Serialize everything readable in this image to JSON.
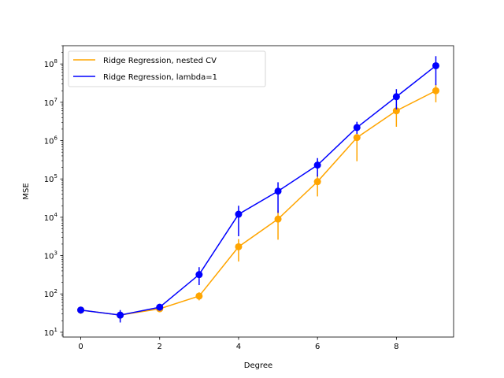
{
  "chart_data": {
    "type": "line",
    "xlabel": "Degree",
    "ylabel": "MSE",
    "xlim": [
      -0.45,
      9.45
    ],
    "ylim": [
      7.5,
      300000000
    ],
    "yscale": "log",
    "x_ticks": [
      0,
      2,
      4,
      6,
      8
    ],
    "x_tick_labels": [
      "0",
      "2",
      "4",
      "6",
      "8"
    ],
    "y_ticks": [
      10,
      100,
      1000,
      10000,
      100000,
      1000000,
      10000000,
      100000000
    ],
    "y_tick_labels": [
      {
        "base": "10",
        "exp": "1"
      },
      {
        "base": "10",
        "exp": "2"
      },
      {
        "base": "10",
        "exp": "3"
      },
      {
        "base": "10",
        "exp": "4"
      },
      {
        "base": "10",
        "exp": "5"
      },
      {
        "base": "10",
        "exp": "6"
      },
      {
        "base": "10",
        "exp": "7"
      },
      {
        "base": "10",
        "exp": "8"
      }
    ],
    "legend_position": "top-left",
    "grid": false,
    "x": [
      0,
      1,
      2,
      3,
      4,
      5,
      6,
      7,
      8,
      9
    ],
    "series": [
      {
        "name": "Ridge Regression, nested CV",
        "color": "#ffa500",
        "values": [
          38,
          28,
          41,
          88,
          1700,
          9000,
          85000,
          1200000,
          6000000,
          20000000
        ],
        "err_low": [
          30,
          20,
          35,
          68,
          700,
          2600,
          35000,
          290000,
          2300000,
          10000000
        ],
        "err_high": [
          46,
          35,
          48,
          110,
          2700,
          15000,
          130000,
          2000000,
          9000000,
          30000000
        ]
      },
      {
        "name": "Ridge Regression, lambda=1",
        "color": "#0000ff",
        "values": [
          38,
          28,
          45,
          320,
          12000,
          48000,
          230000,
          2200000,
          14000000,
          90000000
        ],
        "err_low": [
          33,
          18,
          39,
          170,
          3200,
          13000,
          115000,
          1500000,
          6500000,
          28000000
        ],
        "err_high": [
          44,
          38,
          52,
          500,
          20000,
          82000,
          350000,
          3100000,
          22000000,
          160000000
        ]
      }
    ]
  }
}
